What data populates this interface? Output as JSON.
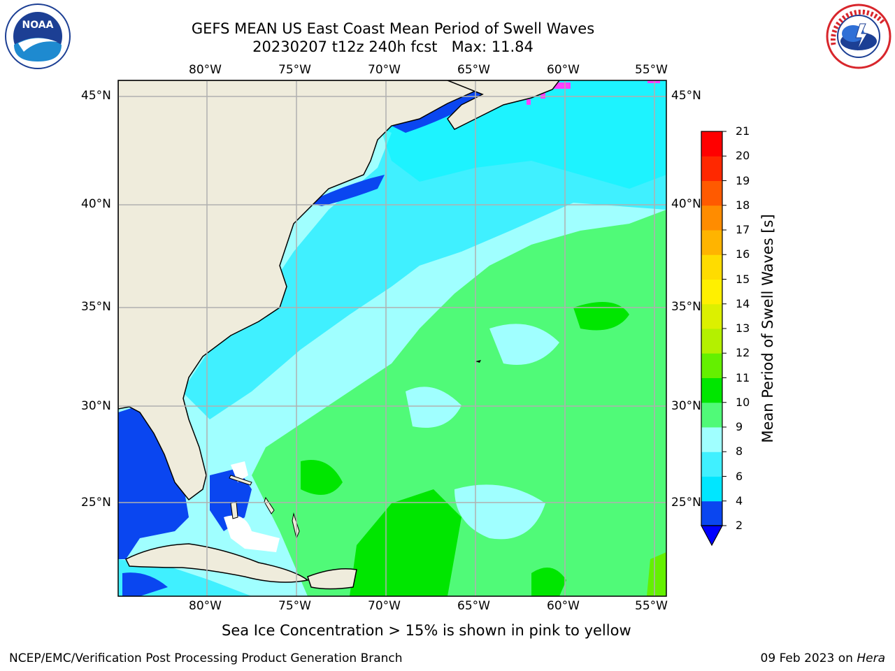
{
  "header": {
    "title_line1": "GEFS MEAN US East Coast Mean Period of Swell Waves",
    "title_line2": "20230207 t12z 240h fcst   Max: 11.84"
  },
  "logos": {
    "left": {
      "icon": "noaa-logo",
      "text": "NOAA"
    },
    "right": {
      "icon": "nws-logo",
      "text": "NATIONAL WEATHER SERVICE"
    }
  },
  "map": {
    "lon_ticks": [
      "80°W",
      "75°W",
      "70°W",
      "65°W",
      "60°W",
      "55°W"
    ],
    "lat_ticks": [
      "45°N",
      "40°N",
      "35°N",
      "30°N",
      "25°N"
    ],
    "colors": {
      "land": "#efecdc",
      "grid": "#b0b0b0",
      "coast": "#000000"
    },
    "legend_note": "Sea Ice Concentration > 15% is shown in pink to yellow"
  },
  "colorbar": {
    "label": "Mean Period of Swell Waves [s]",
    "ticks": [
      "2",
      "4",
      "6",
      "8",
      "9",
      "10",
      "11",
      "12",
      "13",
      "14",
      "15",
      "16",
      "17",
      "18",
      "19",
      "20",
      "21"
    ],
    "colors": [
      "#0a46f0",
      "#00e6ff",
      "#40f0ff",
      "#a0ffff",
      "#50fa78",
      "#00e600",
      "#64f000",
      "#b4f000",
      "#dcf000",
      "#fff000",
      "#ffdc00",
      "#ffb400",
      "#ff8c00",
      "#ff5a00",
      "#ff2800",
      "#ff0000"
    ],
    "under_color": "#0000ff"
  },
  "footer": {
    "left": "NCEP/EMC/Verification Post Processing Product Generation Branch",
    "right_date": "09 Feb 2023 on ",
    "right_machine": "Hera"
  }
}
